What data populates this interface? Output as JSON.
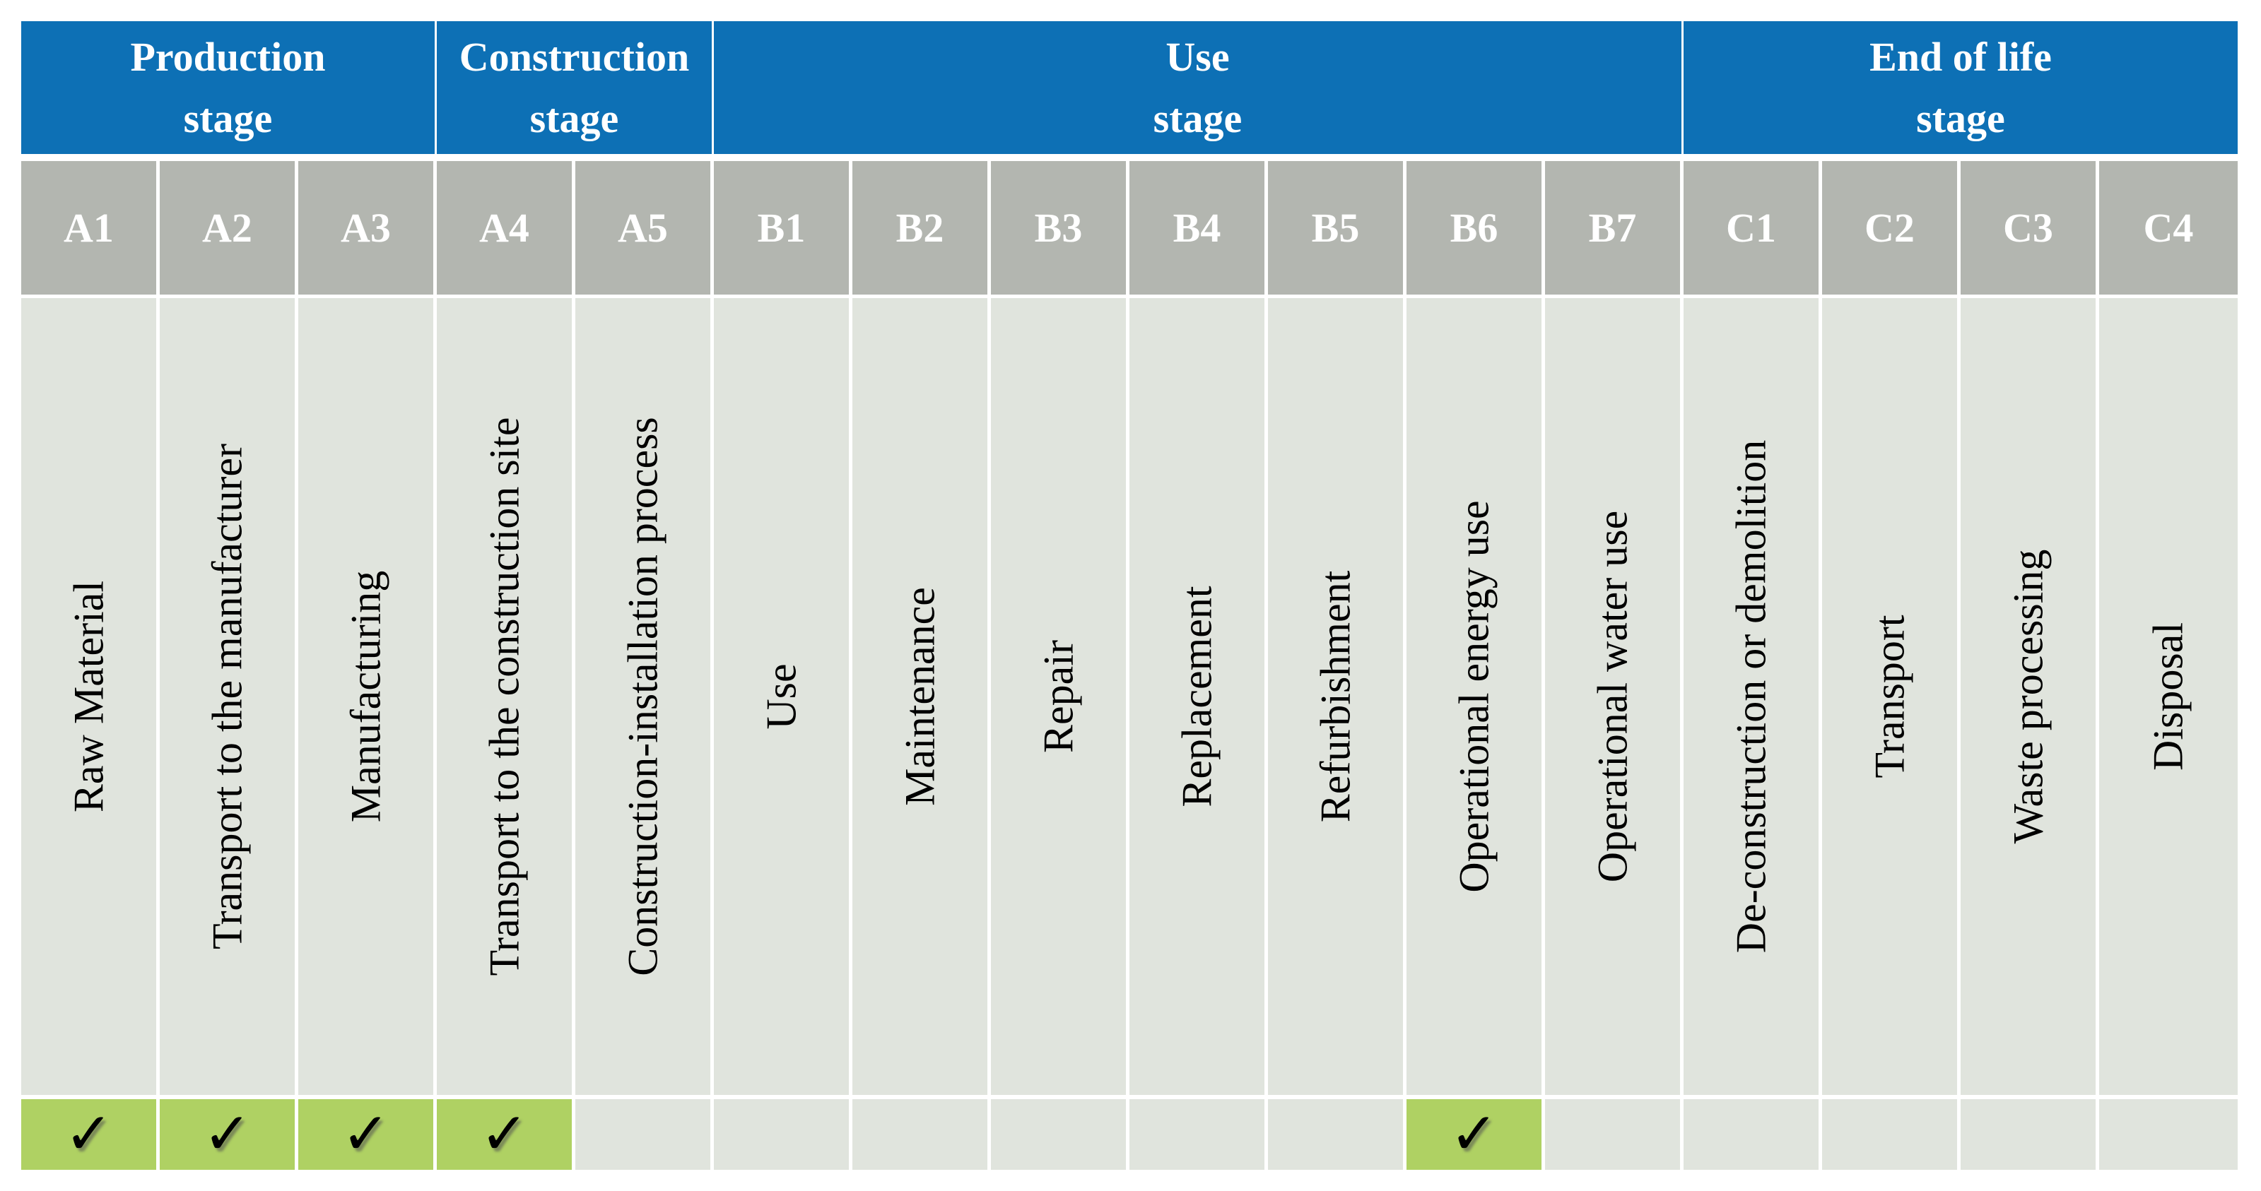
{
  "colors": {
    "blue": "#0d70b5",
    "gray": "#b3b6b0",
    "light": "#e0e4dd",
    "green": "#afd163",
    "divider": "#ffffff",
    "header_text": "#ffffff",
    "body_text": "#000000"
  },
  "table": {
    "stages": [
      {
        "title": "Production",
        "subtitle": "stage",
        "span": 3
      },
      {
        "title": "Construction",
        "subtitle": "stage",
        "span": 2
      },
      {
        "title": "Use",
        "subtitle": "stage",
        "span": 7
      },
      {
        "title": "End of life",
        "subtitle": "stage",
        "span": 4
      }
    ],
    "columns": [
      {
        "code": "A1",
        "label": "Raw Material",
        "checked": true,
        "mark": "✓"
      },
      {
        "code": "A2",
        "label": "Transport to the manufacturer",
        "checked": true,
        "mark": "✓"
      },
      {
        "code": "A3",
        "label": "Manufacturing",
        "checked": true,
        "mark": "✓"
      },
      {
        "code": "A4",
        "label": "Transport to the construction site",
        "checked": true,
        "mark": "✓"
      },
      {
        "code": "A5",
        "label": "Construction-installation process",
        "checked": false,
        "mark": ""
      },
      {
        "code": "B1",
        "label": "Use",
        "checked": false,
        "mark": ""
      },
      {
        "code": "B2",
        "label": "Maintenance",
        "checked": false,
        "mark": ""
      },
      {
        "code": "B3",
        "label": "Repair",
        "checked": false,
        "mark": ""
      },
      {
        "code": "B4",
        "label": "Replacement",
        "checked": false,
        "mark": ""
      },
      {
        "code": "B5",
        "label": "Refurbishment",
        "checked": false,
        "mark": ""
      },
      {
        "code": "B6",
        "label": "Operational energy use",
        "checked": true,
        "mark": "✓"
      },
      {
        "code": "B7",
        "label": "Operational water use",
        "checked": false,
        "mark": ""
      },
      {
        "code": "C1",
        "label": "De-construction or demolition",
        "checked": false,
        "mark": ""
      },
      {
        "code": "C2",
        "label": "Transport",
        "checked": false,
        "mark": ""
      },
      {
        "code": "C3",
        "label": "Waste processing",
        "checked": false,
        "mark": ""
      },
      {
        "code": "C4",
        "label": "Disposal",
        "checked": false,
        "mark": ""
      }
    ]
  }
}
